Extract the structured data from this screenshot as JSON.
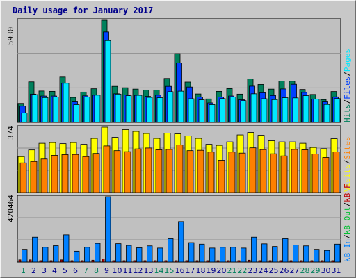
{
  "title": "Daily usage for January 2017",
  "colors": {
    "hits": "#00805c",
    "files": "#0040ff",
    "pages": "#00e8ff",
    "visits": "#ffff00",
    "sites": "#ff8000",
    "kbin": "#0080ff",
    "kbout": "#00c030",
    "kbf": "#c00000",
    "weekend": "#00805c",
    "weekday": "#00008b",
    "plotbg": "#c0c0c0",
    "grid": "#8f8f8f"
  },
  "legend_top": [
    {
      "text": "Hits",
      "color": "#00805c"
    },
    {
      "text": "/",
      "color": "#000000"
    },
    {
      "text": "Files",
      "color": "#0040ff"
    },
    {
      "text": "/",
      "color": "#000000"
    },
    {
      "text": "Pages",
      "color": "#00e8ff"
    }
  ],
  "legend_mid": [
    {
      "text": "Visits",
      "color": "#ffff00"
    },
    {
      "text": "/",
      "color": "#000000"
    },
    {
      "text": "Sites",
      "color": "#ff8000"
    }
  ],
  "legend_bot": [
    {
      "text": "kB In",
      "color": "#0080ff"
    },
    {
      "text": "/",
      "color": "#000000"
    },
    {
      "text": "kB Out",
      "color": "#00c030"
    },
    {
      "text": "/",
      "color": "#000000"
    },
    {
      "text": "kB F",
      "color": "#c00000"
    }
  ],
  "chart_data": [
    {
      "type": "bar",
      "name": "hits-files-pages",
      "ymax": 5930,
      "ymax_label": "5930",
      "categories": [
        "1",
        "2",
        "3",
        "4",
        "5",
        "6",
        "7",
        "8",
        "9",
        "10",
        "11",
        "12",
        "13",
        "14",
        "15",
        "16",
        "17",
        "18",
        "19",
        "20",
        "21",
        "22",
        "23",
        "24",
        "25",
        "26",
        "27",
        "28",
        "29",
        "30",
        "31"
      ],
      "weekend": [
        1,
        7,
        8,
        14,
        15,
        21,
        22,
        28,
        29
      ],
      "series": [
        {
          "name": "Hits",
          "values": [
            1100,
            2350,
            1820,
            1800,
            2630,
            1450,
            1760,
            1950,
            5930,
            2090,
            2010,
            1930,
            1880,
            1880,
            2550,
            3990,
            2340,
            1650,
            1360,
            1800,
            1960,
            1640,
            2520,
            2200,
            1930,
            2400,
            2390,
            1910,
            1620,
            1320,
            1790
          ]
        },
        {
          "name": "Files",
          "values": [
            940,
            1640,
            1530,
            1530,
            2270,
            1190,
            1540,
            1580,
            5250,
            1660,
            1590,
            1570,
            1510,
            1580,
            2090,
            3450,
            2050,
            1470,
            1130,
            1470,
            1530,
            1310,
            2100,
            1720,
            1560,
            1940,
            2210,
            1740,
            1350,
            1190,
            1480
          ]
        },
        {
          "name": "Pages",
          "values": [
            540,
            1610,
            1440,
            1470,
            2270,
            1030,
            1470,
            1580,
            4750,
            1640,
            1550,
            1570,
            1450,
            1430,
            1780,
            1810,
            1370,
            1310,
            1030,
            1380,
            1470,
            1260,
            1660,
            1370,
            1320,
            1430,
            1420,
            1550,
            1350,
            1040,
            1380
          ]
        }
      ]
    },
    {
      "type": "bar",
      "name": "visits-sites",
      "ymax": 374,
      "ymax_label": "374",
      "categories": [
        "1",
        "2",
        "3",
        "4",
        "5",
        "6",
        "7",
        "8",
        "9",
        "10",
        "11",
        "12",
        "13",
        "14",
        "15",
        "16",
        "17",
        "18",
        "19",
        "20",
        "21",
        "22",
        "23",
        "24",
        "25",
        "26",
        "27",
        "28",
        "29",
        "30",
        "31"
      ],
      "series": [
        {
          "name": "Visits",
          "values": [
            206,
            244,
            282,
            286,
            280,
            286,
            276,
            310,
            374,
            316,
            360,
            350,
            338,
            310,
            340,
            336,
            324,
            310,
            276,
            270,
            290,
            330,
            344,
            328,
            296,
            290,
            290,
            282,
            258,
            251,
            308
          ]
        },
        {
          "name": "Sites",
          "values": [
            170,
            178,
            192,
            213,
            217,
            218,
            206,
            224,
            267,
            240,
            234,
            250,
            255,
            245,
            247,
            272,
            240,
            242,
            232,
            185,
            232,
            226,
            256,
            246,
            222,
            210,
            247,
            245,
            221,
            201,
            233
          ]
        }
      ]
    },
    {
      "type": "bar",
      "name": "kb-in-out-f",
      "ymax": 420464,
      "ymax_label": "420464",
      "categories": [
        "1",
        "2",
        "3",
        "4",
        "5",
        "6",
        "7",
        "8",
        "9",
        "10",
        "11",
        "12",
        "13",
        "14",
        "15",
        "16",
        "17",
        "18",
        "19",
        "20",
        "21",
        "22",
        "23",
        "24",
        "25",
        "26",
        "27",
        "28",
        "29",
        "30",
        "31"
      ],
      "series": [
        {
          "name": "kB In",
          "values": [
            82000,
            160000,
            95000,
            105000,
            175000,
            70000,
            95000,
            120000,
            420464,
            118000,
            107000,
            92000,
            104000,
            90000,
            150000,
            260000,
            125000,
            115000,
            90000,
            95000,
            95000,
            90000,
            160000,
            117000,
            100000,
            150000,
            110000,
            104000,
            82000,
            75000,
            115000
          ]
        },
        {
          "name": "kB Out",
          "values": [
            0,
            0,
            0,
            0,
            0,
            0,
            0,
            0,
            0,
            0,
            0,
            0,
            0,
            0,
            0,
            0,
            0,
            0,
            0,
            0,
            0,
            0,
            0,
            0,
            0,
            0,
            0,
            0,
            0,
            0,
            0
          ]
        },
        {
          "name": "kB F",
          "values": [
            14000,
            14000,
            9000,
            9000,
            14000,
            9000,
            9000,
            12000,
            20000,
            9000,
            9000,
            9000,
            9000,
            9000,
            9000,
            9000,
            9000,
            9000,
            9000,
            9000,
            9000,
            9000,
            12000,
            9000,
            9000,
            9000,
            9000,
            9000,
            9000,
            9000,
            9000
          ]
        }
      ]
    }
  ]
}
